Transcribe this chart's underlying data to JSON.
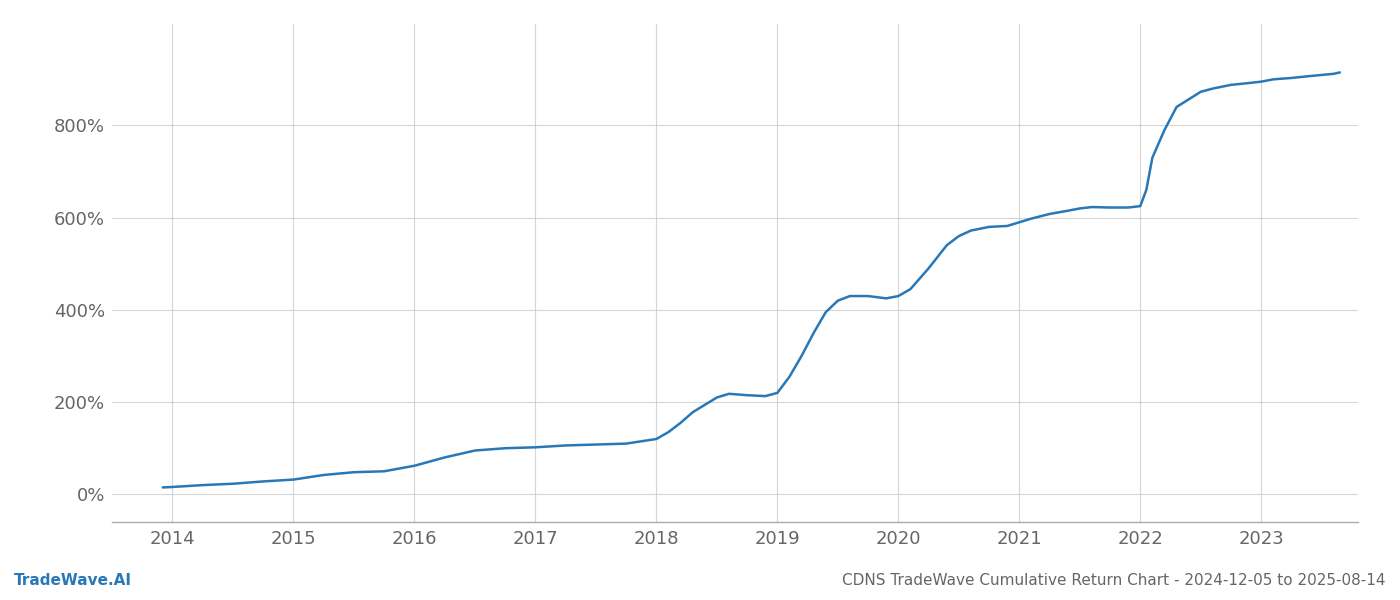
{
  "title": "CDNS TradeWave Cumulative Return Chart - 2024-12-05 to 2025-08-14",
  "watermark": "TradeWave.AI",
  "line_color": "#2878b8",
  "line_width": 1.8,
  "background_color": "#ffffff",
  "grid_color": "#cccccc",
  "x_years": [
    2014,
    2015,
    2016,
    2017,
    2018,
    2019,
    2020,
    2021,
    2022,
    2023
  ],
  "y_ticks": [
    0,
    200,
    400,
    600,
    800
  ],
  "y_tick_labels": [
    "0%",
    "200%",
    "400%",
    "600%",
    "800%"
  ],
  "xlim": [
    2013.5,
    2023.8
  ],
  "ylim": [
    -60,
    1020
  ],
  "data_x": [
    2013.92,
    2014.0,
    2014.25,
    2014.5,
    2014.75,
    2015.0,
    2015.25,
    2015.5,
    2015.75,
    2016.0,
    2016.25,
    2016.5,
    2016.75,
    2017.0,
    2017.25,
    2017.5,
    2017.75,
    2018.0,
    2018.1,
    2018.2,
    2018.3,
    2018.5,
    2018.6,
    2018.75,
    2018.9,
    2019.0,
    2019.1,
    2019.2,
    2019.3,
    2019.4,
    2019.5,
    2019.6,
    2019.75,
    2019.9,
    2020.0,
    2020.1,
    2020.25,
    2020.4,
    2020.5,
    2020.6,
    2020.75,
    2020.9,
    2021.0,
    2021.1,
    2021.25,
    2021.4,
    2021.5,
    2021.6,
    2021.75,
    2021.9,
    2022.0,
    2022.05,
    2022.1,
    2022.2,
    2022.3,
    2022.5,
    2022.6,
    2022.75,
    2022.9,
    2023.0,
    2023.1,
    2023.25,
    2023.4,
    2023.6,
    2023.65
  ],
  "data_y": [
    15,
    16,
    20,
    23,
    28,
    32,
    42,
    48,
    50,
    62,
    80,
    95,
    100,
    102,
    106,
    108,
    110,
    120,
    135,
    155,
    178,
    210,
    218,
    215,
    213,
    220,
    255,
    300,
    350,
    395,
    420,
    430,
    430,
    425,
    430,
    445,
    490,
    540,
    560,
    572,
    580,
    582,
    590,
    598,
    608,
    615,
    620,
    623,
    622,
    622,
    625,
    660,
    730,
    790,
    840,
    873,
    880,
    888,
    892,
    895,
    900,
    903,
    907,
    912,
    915
  ],
  "text_color": "#666666",
  "tick_fontsize": 13,
  "footer_fontsize": 11
}
